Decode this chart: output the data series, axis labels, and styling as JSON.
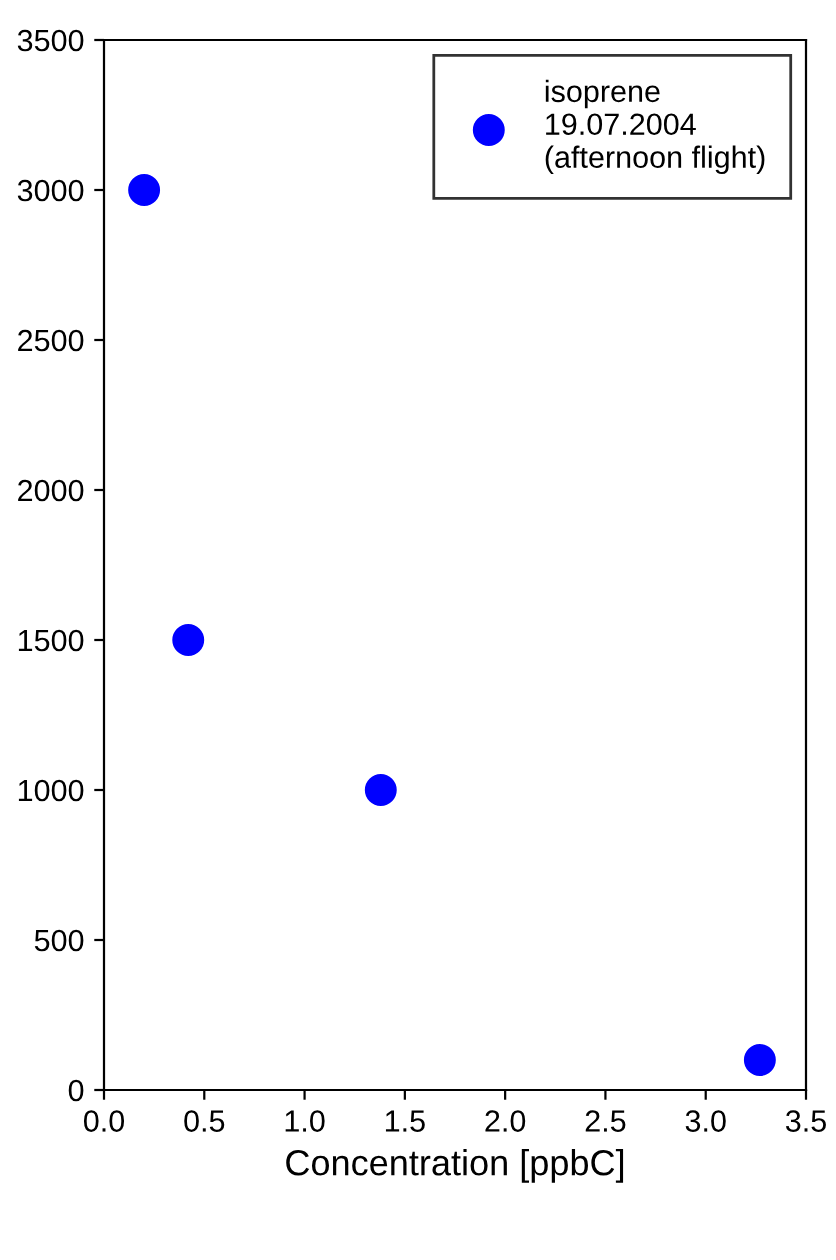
{
  "chart_data": {
    "type": "scatter",
    "xlabel": "Concentration [ppbC]",
    "series": [
      {
        "name": "isoprene\n19.07.2004\n(afternoon flight)",
        "color": "#0000ff",
        "x": [
          0.2,
          0.42,
          1.38,
          3.27
        ],
        "values": [
          3000,
          1500,
          1000,
          100
        ]
      }
    ],
    "xlim": [
      0.0,
      3.5
    ],
    "xticks": [
      {
        "value": 0,
        "label": "0.0"
      },
      {
        "value": 0.5,
        "label": "0.5"
      },
      {
        "value": 1,
        "label": "1.0"
      },
      {
        "value": 1.5,
        "label": "1.5"
      },
      {
        "value": 2,
        "label": "2.0"
      },
      {
        "value": 2.5,
        "label": "2.5"
      },
      {
        "value": 3,
        "label": "3.0"
      },
      {
        "value": 3.5,
        "label": "3.5"
      }
    ],
    "ylim": [
      0,
      3500
    ],
    "yticks": [
      0,
      500,
      1000,
      1500,
      2000,
      2500,
      3000,
      3500
    ],
    "marker": "circle",
    "legend": "top right",
    "grid": false
  }
}
